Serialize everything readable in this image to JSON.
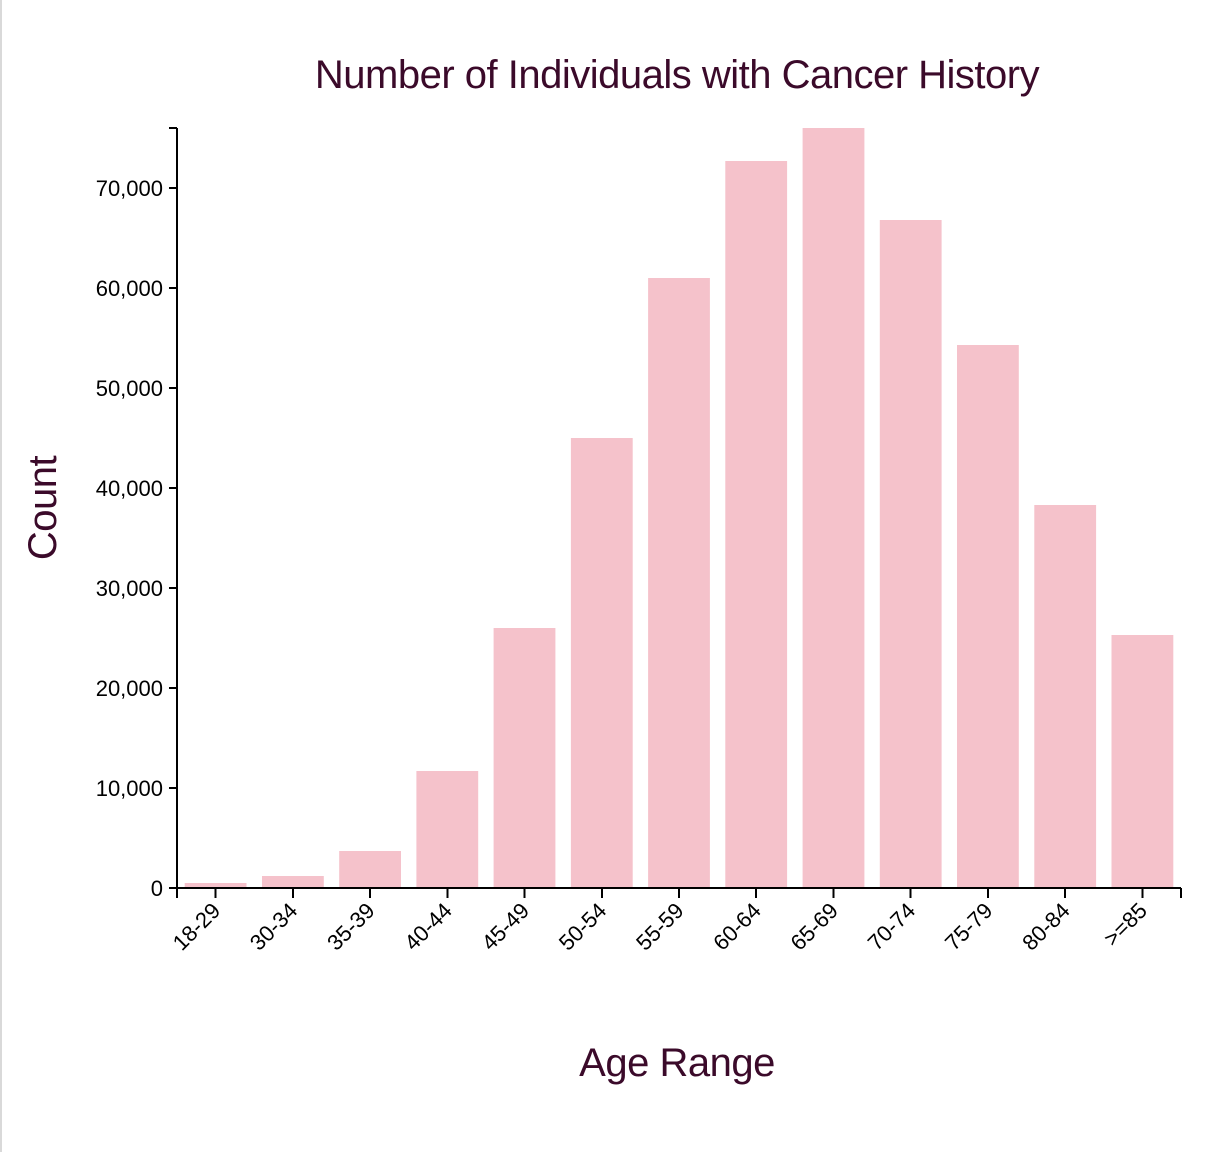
{
  "chart_data": {
    "type": "bar",
    "title": "Number of Individuals with Cancer History",
    "xlabel": "Age Range",
    "ylabel": "Count",
    "categories": [
      "18-29",
      "30-34",
      "35-39",
      "40-44",
      "45-49",
      "50-54",
      "55-59",
      "60-64",
      "65-69",
      "70-74",
      "75-79",
      "80-84",
      ">=85"
    ],
    "values": [
      500,
      1200,
      3700,
      11700,
      26000,
      45000,
      61000,
      72700,
      76000,
      66800,
      54300,
      38300,
      25300
    ],
    "ylim": [
      0,
      76000
    ],
    "yticks": [
      0,
      10000,
      20000,
      30000,
      40000,
      50000,
      60000,
      70000
    ],
    "ytick_labels": [
      "0",
      "10,000",
      "20,000",
      "30,000",
      "40,000",
      "50,000",
      "60,000",
      "70,000"
    ],
    "bar_color": "#f5c2cb",
    "text_color": "#3b0a2a",
    "grid": false,
    "legend": "none"
  }
}
